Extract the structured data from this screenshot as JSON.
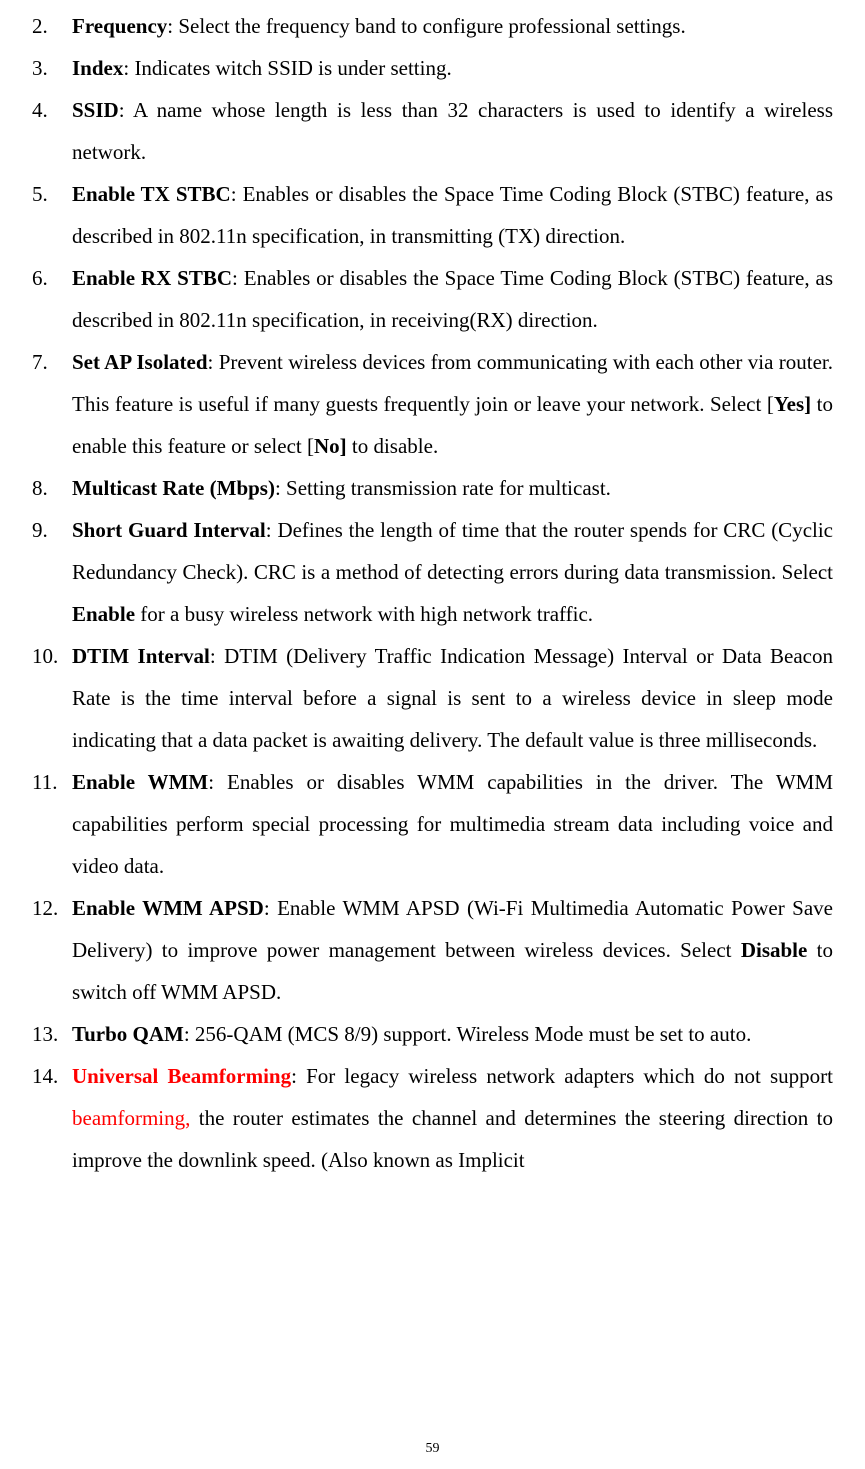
{
  "page_number": "59",
  "colors": {
    "text": "#000000",
    "red": "#ff0000",
    "bg": "#ffffff"
  },
  "font": {
    "family": "Times New Roman",
    "size_pt": 16,
    "line_height": 2.0
  },
  "items": [
    {
      "n": "2.",
      "term": "Frequency",
      "desc": ": Select the frequency band to configure professional settings."
    },
    {
      "n": "3.",
      "term": "Index",
      "desc": ": Indicates witch SSID is under setting."
    },
    {
      "n": "4.",
      "term": "SSID",
      "desc": ": A name whose length is less than 32 characters is used to identify a wireless network."
    },
    {
      "n": "5.",
      "term": "Enable TX STBC",
      "desc": ": Enables or disables the Space Time Coding Block (STBC) feature, as described in 802.11n specification, in transmitting (TX) direction."
    },
    {
      "n": "6.",
      "term": "Enable RX STBC",
      "desc": ": Enables or disables the Space Time Coding Block (STBC) feature, as described in 802.11n specification, in receiving(RX) direction."
    },
    {
      "n": "7.",
      "term": "Set AP Isolated",
      "pre": ": Prevent wireless devices from communicating with each other via router. This feature is useful if many guests frequently join or leave your network. Select [",
      "b1": "Yes]",
      "mid": " to enable this feature or select [",
      "b2": "No]",
      "post": " to disable."
    },
    {
      "n": "8.",
      "term": "Multicast Rate (Mbps)",
      "desc": ": Setting transmission rate for multicast."
    },
    {
      "n": "9.",
      "term": "Short Guard Interval",
      "pre": ": Defines the length of time that the router spends for CRC (Cyclic Redundancy Check). CRC is a method of detecting errors during data transmission. Select ",
      "b1": "Enable",
      "post": " for a busy wireless network with high network traffic."
    },
    {
      "n": "10.",
      "term": "DTIM Interval",
      "desc": ": DTIM (Delivery Traffic Indication Message) Interval or Data Beacon Rate is the time interval before a signal is sent to a wireless device in sleep mode indicating that a data packet is awaiting delivery. The default value is three milliseconds."
    },
    {
      "n": "11.",
      "term": "Enable WMM",
      "desc": ": Enables or disables WMM capabilities in the driver. The WMM capabilities perform special processing for multimedia stream data including voice and video data."
    },
    {
      "n": "12.",
      "term": "Enable WMM APSD",
      "pre": ": Enable WMM APSD (Wi-Fi Multimedia Automatic Power Save Delivery) to improve power management between wireless devices. Select ",
      "b1": "Disable",
      "post": " to switch off WMM APSD."
    },
    {
      "n": "13.",
      "term": "Turbo QAM",
      "desc": ": 256-QAM (MCS 8/9) support. Wireless Mode must be set to auto."
    },
    {
      "n": "14.",
      "term_red": "Universal Beamforming",
      "pre": ": For legacy wireless network adapters which do not support ",
      "r1": "beamforming,",
      "post": " the router estimates the channel and determines the steering direction to improve the downlink speed. (Also known as Implicit"
    }
  ]
}
